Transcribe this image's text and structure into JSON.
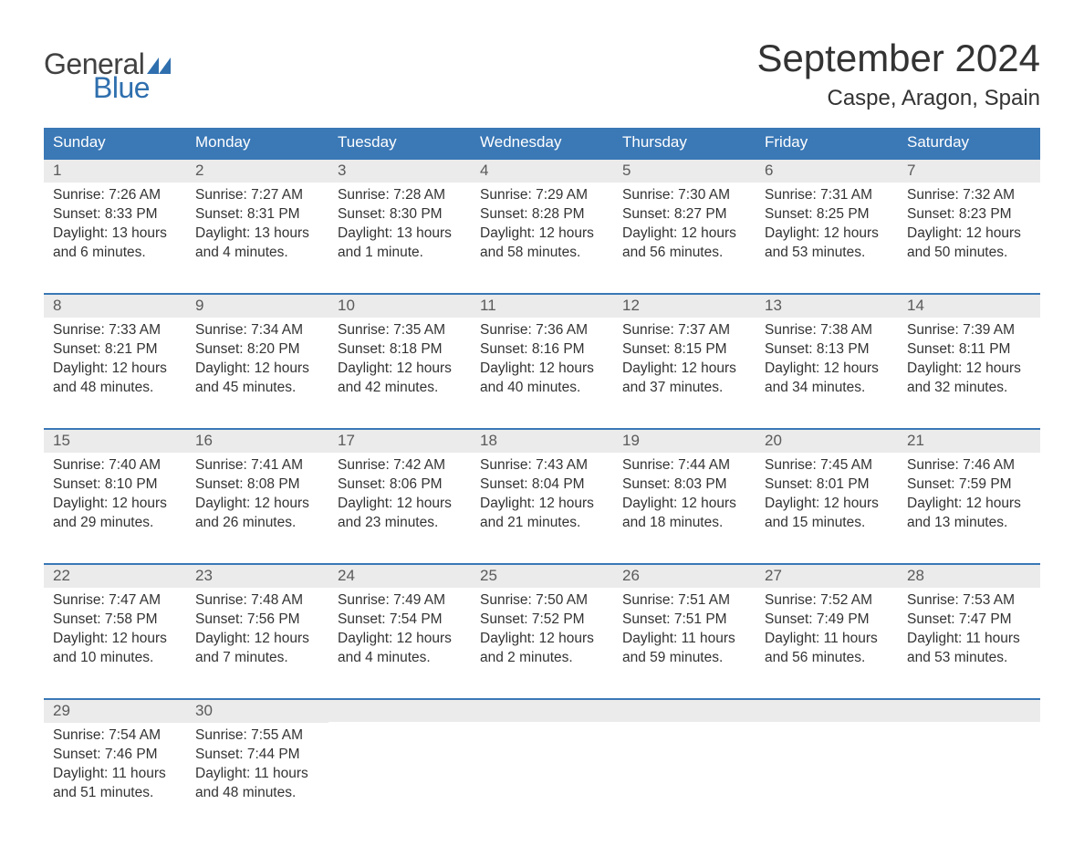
{
  "brand": {
    "general": "General",
    "blue": "Blue",
    "flag_color": "#2f6fae"
  },
  "title": "September 2024",
  "location": "Caspe, Aragon, Spain",
  "colors": {
    "header_bg": "#3a78b6",
    "header_text": "#ffffff",
    "daynum_bg": "#ebebeb",
    "daynum_text": "#5a5a5a",
    "body_text": "#333333",
    "rule": "#3a78b6",
    "page_bg": "#ffffff"
  },
  "typography": {
    "title_fontsize_pt": 32,
    "location_fontsize_pt": 18,
    "dayhead_fontsize_pt": 13,
    "body_fontsize_pt": 12
  },
  "day_headers": [
    "Sunday",
    "Monday",
    "Tuesday",
    "Wednesday",
    "Thursday",
    "Friday",
    "Saturday"
  ],
  "weeks": [
    [
      {
        "num": "1",
        "sunrise": "Sunrise: 7:26 AM",
        "sunset": "Sunset: 8:33 PM",
        "day1": "Daylight: 13 hours",
        "day2": "and 6 minutes."
      },
      {
        "num": "2",
        "sunrise": "Sunrise: 7:27 AM",
        "sunset": "Sunset: 8:31 PM",
        "day1": "Daylight: 13 hours",
        "day2": "and 4 minutes."
      },
      {
        "num": "3",
        "sunrise": "Sunrise: 7:28 AM",
        "sunset": "Sunset: 8:30 PM",
        "day1": "Daylight: 13 hours",
        "day2": "and 1 minute."
      },
      {
        "num": "4",
        "sunrise": "Sunrise: 7:29 AM",
        "sunset": "Sunset: 8:28 PM",
        "day1": "Daylight: 12 hours",
        "day2": "and 58 minutes."
      },
      {
        "num": "5",
        "sunrise": "Sunrise: 7:30 AM",
        "sunset": "Sunset: 8:27 PM",
        "day1": "Daylight: 12 hours",
        "day2": "and 56 minutes."
      },
      {
        "num": "6",
        "sunrise": "Sunrise: 7:31 AM",
        "sunset": "Sunset: 8:25 PM",
        "day1": "Daylight: 12 hours",
        "day2": "and 53 minutes."
      },
      {
        "num": "7",
        "sunrise": "Sunrise: 7:32 AM",
        "sunset": "Sunset: 8:23 PM",
        "day1": "Daylight: 12 hours",
        "day2": "and 50 minutes."
      }
    ],
    [
      {
        "num": "8",
        "sunrise": "Sunrise: 7:33 AM",
        "sunset": "Sunset: 8:21 PM",
        "day1": "Daylight: 12 hours",
        "day2": "and 48 minutes."
      },
      {
        "num": "9",
        "sunrise": "Sunrise: 7:34 AM",
        "sunset": "Sunset: 8:20 PM",
        "day1": "Daylight: 12 hours",
        "day2": "and 45 minutes."
      },
      {
        "num": "10",
        "sunrise": "Sunrise: 7:35 AM",
        "sunset": "Sunset: 8:18 PM",
        "day1": "Daylight: 12 hours",
        "day2": "and 42 minutes."
      },
      {
        "num": "11",
        "sunrise": "Sunrise: 7:36 AM",
        "sunset": "Sunset: 8:16 PM",
        "day1": "Daylight: 12 hours",
        "day2": "and 40 minutes."
      },
      {
        "num": "12",
        "sunrise": "Sunrise: 7:37 AM",
        "sunset": "Sunset: 8:15 PM",
        "day1": "Daylight: 12 hours",
        "day2": "and 37 minutes."
      },
      {
        "num": "13",
        "sunrise": "Sunrise: 7:38 AM",
        "sunset": "Sunset: 8:13 PM",
        "day1": "Daylight: 12 hours",
        "day2": "and 34 minutes."
      },
      {
        "num": "14",
        "sunrise": "Sunrise: 7:39 AM",
        "sunset": "Sunset: 8:11 PM",
        "day1": "Daylight: 12 hours",
        "day2": "and 32 minutes."
      }
    ],
    [
      {
        "num": "15",
        "sunrise": "Sunrise: 7:40 AM",
        "sunset": "Sunset: 8:10 PM",
        "day1": "Daylight: 12 hours",
        "day2": "and 29 minutes."
      },
      {
        "num": "16",
        "sunrise": "Sunrise: 7:41 AM",
        "sunset": "Sunset: 8:08 PM",
        "day1": "Daylight: 12 hours",
        "day2": "and 26 minutes."
      },
      {
        "num": "17",
        "sunrise": "Sunrise: 7:42 AM",
        "sunset": "Sunset: 8:06 PM",
        "day1": "Daylight: 12 hours",
        "day2": "and 23 minutes."
      },
      {
        "num": "18",
        "sunrise": "Sunrise: 7:43 AM",
        "sunset": "Sunset: 8:04 PM",
        "day1": "Daylight: 12 hours",
        "day2": "and 21 minutes."
      },
      {
        "num": "19",
        "sunrise": "Sunrise: 7:44 AM",
        "sunset": "Sunset: 8:03 PM",
        "day1": "Daylight: 12 hours",
        "day2": "and 18 minutes."
      },
      {
        "num": "20",
        "sunrise": "Sunrise: 7:45 AM",
        "sunset": "Sunset: 8:01 PM",
        "day1": "Daylight: 12 hours",
        "day2": "and 15 minutes."
      },
      {
        "num": "21",
        "sunrise": "Sunrise: 7:46 AM",
        "sunset": "Sunset: 7:59 PM",
        "day1": "Daylight: 12 hours",
        "day2": "and 13 minutes."
      }
    ],
    [
      {
        "num": "22",
        "sunrise": "Sunrise: 7:47 AM",
        "sunset": "Sunset: 7:58 PM",
        "day1": "Daylight: 12 hours",
        "day2": "and 10 minutes."
      },
      {
        "num": "23",
        "sunrise": "Sunrise: 7:48 AM",
        "sunset": "Sunset: 7:56 PM",
        "day1": "Daylight: 12 hours",
        "day2": "and 7 minutes."
      },
      {
        "num": "24",
        "sunrise": "Sunrise: 7:49 AM",
        "sunset": "Sunset: 7:54 PM",
        "day1": "Daylight: 12 hours",
        "day2": "and 4 minutes."
      },
      {
        "num": "25",
        "sunrise": "Sunrise: 7:50 AM",
        "sunset": "Sunset: 7:52 PM",
        "day1": "Daylight: 12 hours",
        "day2": "and 2 minutes."
      },
      {
        "num": "26",
        "sunrise": "Sunrise: 7:51 AM",
        "sunset": "Sunset: 7:51 PM",
        "day1": "Daylight: 11 hours",
        "day2": "and 59 minutes."
      },
      {
        "num": "27",
        "sunrise": "Sunrise: 7:52 AM",
        "sunset": "Sunset: 7:49 PM",
        "day1": "Daylight: 11 hours",
        "day2": "and 56 minutes."
      },
      {
        "num": "28",
        "sunrise": "Sunrise: 7:53 AM",
        "sunset": "Sunset: 7:47 PM",
        "day1": "Daylight: 11 hours",
        "day2": "and 53 minutes."
      }
    ],
    [
      {
        "num": "29",
        "sunrise": "Sunrise: 7:54 AM",
        "sunset": "Sunset: 7:46 PM",
        "day1": "Daylight: 11 hours",
        "day2": "and 51 minutes."
      },
      {
        "num": "30",
        "sunrise": "Sunrise: 7:55 AM",
        "sunset": "Sunset: 7:44 PM",
        "day1": "Daylight: 11 hours",
        "day2": "and 48 minutes."
      },
      {
        "empty": true
      },
      {
        "empty": true
      },
      {
        "empty": true
      },
      {
        "empty": true
      },
      {
        "empty": true
      }
    ]
  ]
}
